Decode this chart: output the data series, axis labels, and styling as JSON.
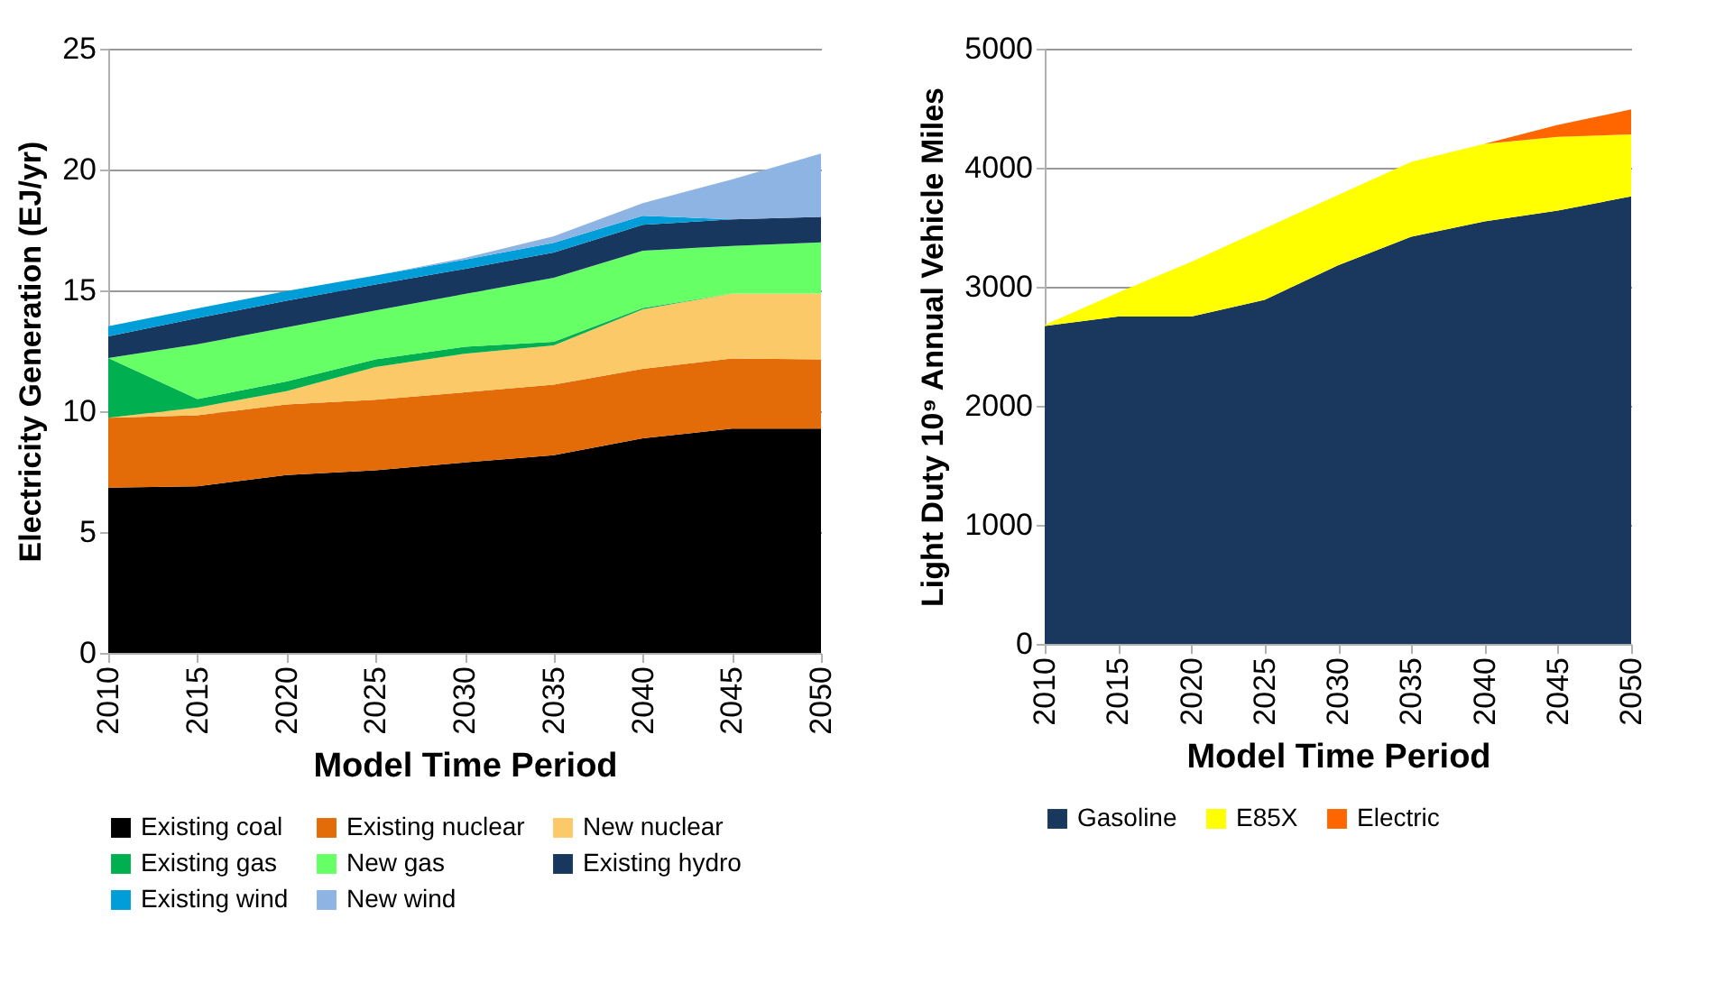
{
  "chart_data": [
    {
      "type": "area",
      "stacked": true,
      "xlabel": "Model Time Period",
      "ylabel": "Electricity Generation (EJ/yr)",
      "x": [
        2010,
        2015,
        2020,
        2025,
        2030,
        2035,
        2040,
        2045,
        2050
      ],
      "xlim": [
        2010,
        2050
      ],
      "xticks": [
        2010,
        2015,
        2020,
        2025,
        2030,
        2035,
        2040,
        2045,
        2050
      ],
      "ylim": [
        0,
        25
      ],
      "yticks": [
        0,
        5,
        10,
        15,
        20,
        25
      ],
      "grid": "y",
      "legend": "bottom",
      "series": [
        {
          "name": "Existing coal",
          "color": "#000000",
          "values": [
            6.84,
            6.89,
            7.36,
            7.56,
            7.88,
            8.18,
            8.88,
            9.28,
            9.28
          ]
        },
        {
          "name": "Existing nuclear",
          "color": "#e36c09",
          "values": [
            2.89,
            2.94,
            2.92,
            2.92,
            2.9,
            2.92,
            2.87,
            2.9,
            2.87
          ]
        },
        {
          "name": "New nuclear",
          "color": "#fcc968",
          "values": [
            0,
            0.32,
            0.55,
            1.35,
            1.6,
            1.62,
            2.47,
            2.69,
            2.72
          ]
        },
        {
          "name": "Existing gas",
          "color": "#00b050",
          "values": [
            2.47,
            0.35,
            0.4,
            0.32,
            0.29,
            0.15,
            0.05,
            0,
            null
          ]
        },
        {
          "name": "New gas",
          "color": "#66ff66",
          "values": [
            0,
            2.27,
            2.24,
            2.02,
            2.18,
            2.65,
            2.37,
            1.97,
            2.12
          ]
        },
        {
          "name": "Existing hydro",
          "color": "#17375e",
          "values": [
            0.9,
            1.08,
            1.1,
            1.07,
            1.04,
            1.05,
            1.07,
            1.1,
            1.05
          ]
        },
        {
          "name": "Existing wind",
          "color": "#009ed8",
          "values": [
            0.42,
            0.4,
            0.4,
            0.38,
            0.38,
            0.4,
            0.38,
            0,
            null
          ]
        },
        {
          "name": "New wind",
          "color": "#8eb4e3",
          "values": [
            null,
            null,
            null,
            0,
            0.07,
            0.27,
            0.52,
            1.65,
            2.62
          ]
        }
      ]
    },
    {
      "type": "area",
      "stacked": true,
      "xlabel": "Model Time Period",
      "ylabel": "Light Duty 10⁹ Annual Vehicle Miles",
      "x": [
        2010,
        2015,
        2020,
        2025,
        2030,
        2035,
        2040,
        2045,
        2050
      ],
      "xlim": [
        2010,
        2050
      ],
      "xticks": [
        2010,
        2015,
        2020,
        2025,
        2030,
        2035,
        2040,
        2045,
        2050
      ],
      "ylim": [
        0,
        5000
      ],
      "yticks": [
        0,
        1000,
        2000,
        3000,
        4000,
        5000
      ],
      "grid": "y",
      "legend": "bottom",
      "series": [
        {
          "name": "Gasoline",
          "color": "#1a375e",
          "values": [
            2670,
            2750,
            2750,
            2890,
            3180,
            3420,
            3550,
            3640,
            3760
          ]
        },
        {
          "name": "E85X",
          "color": "#ffff00",
          "values": [
            10,
            200,
            460,
            600,
            590,
            630,
            650,
            620,
            520
          ]
        },
        {
          "name": "Electric",
          "color": "#ff6600",
          "values": [
            0,
            0,
            0,
            0,
            0,
            0,
            0,
            100,
            210
          ]
        }
      ]
    }
  ]
}
